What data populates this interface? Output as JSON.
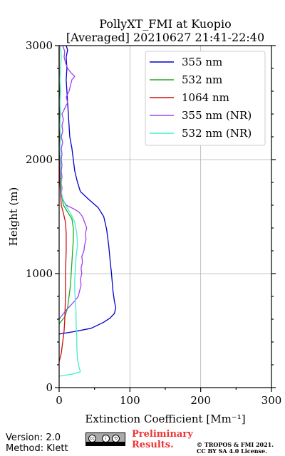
{
  "header": {
    "title_line1": "PollyXT_FMI at Kuopio",
    "title_line2": "[Averaged] 20210627 21:41-22:40"
  },
  "footer": {
    "version": "Version: 2.0",
    "method": "Method: Klett",
    "license_badge_icons": "cc-by-sa-icon",
    "preliminary_line1": "Preliminary",
    "preliminary_line2": "Results.",
    "copyright_line1": "© TROPOS & FMI 2021.",
    "copyright_line2": "CC BY SA 4.0 License."
  },
  "chart_data": {
    "type": "line",
    "xlabel": "Extinction Coefficient [Mm⁻¹]",
    "ylabel": "Height (m)",
    "xlim": [
      0,
      300
    ],
    "ylim": [
      0,
      3000
    ],
    "xticks": [
      "0",
      "100",
      "200",
      "300"
    ],
    "yticks": [
      "0",
      "1000",
      "2000",
      "3000"
    ],
    "grid": true,
    "legend_position": "top-right",
    "series": [
      {
        "name": "355 nm",
        "color": "#0000cc",
        "points": [
          [
            0,
            470
          ],
          [
            20,
            490
          ],
          [
            45,
            520
          ],
          [
            62,
            570
          ],
          [
            72,
            610
          ],
          [
            78,
            650
          ],
          [
            80,
            700
          ],
          [
            78,
            760
          ],
          [
            76,
            850
          ],
          [
            74,
            1000
          ],
          [
            72,
            1120
          ],
          [
            70,
            1250
          ],
          [
            67,
            1390
          ],
          [
            63,
            1500
          ],
          [
            55,
            1580
          ],
          [
            42,
            1650
          ],
          [
            30,
            1720
          ],
          [
            26,
            1800
          ],
          [
            22,
            1900
          ],
          [
            20,
            2000
          ],
          [
            18,
            2100
          ],
          [
            15,
            2200
          ],
          [
            14,
            2300
          ],
          [
            13,
            2400
          ],
          [
            12,
            2500
          ],
          [
            11,
            2600
          ],
          [
            10,
            2700
          ],
          [
            11,
            2800
          ],
          [
            10,
            2900
          ],
          [
            12,
            2960
          ],
          [
            10,
            3000
          ]
        ]
      },
      {
        "name": "532 nm",
        "color": "#22aa22",
        "points": [
          [
            0,
            560
          ],
          [
            8,
            620
          ],
          [
            12,
            700
          ],
          [
            14,
            800
          ],
          [
            16,
            900
          ],
          [
            17,
            1000
          ],
          [
            18,
            1100
          ],
          [
            19,
            1200
          ],
          [
            20,
            1300
          ],
          [
            20,
            1400
          ],
          [
            18,
            1480
          ],
          [
            12,
            1540
          ],
          [
            6,
            1600
          ],
          [
            3,
            1700
          ],
          [
            2,
            1800
          ],
          [
            2,
            1900
          ],
          [
            1,
            2000
          ],
          [
            1,
            2200
          ],
          [
            1,
            2400
          ],
          [
            1,
            2600
          ],
          [
            0,
            2800
          ],
          [
            0,
            3000
          ]
        ]
      },
      {
        "name": "1064 nm",
        "color": "#cc1111",
        "points": [
          [
            0,
            230
          ],
          [
            3,
            300
          ],
          [
            5,
            400
          ],
          [
            7,
            500
          ],
          [
            8,
            600
          ],
          [
            9,
            800
          ],
          [
            9,
            1000
          ],
          [
            10,
            1200
          ],
          [
            10,
            1350
          ],
          [
            9,
            1450
          ],
          [
            6,
            1530
          ],
          [
            3,
            1600
          ],
          [
            2,
            1700
          ],
          [
            1,
            1800
          ],
          [
            1,
            1900
          ],
          [
            0,
            2000
          ],
          [
            0,
            2200
          ],
          [
            0,
            2500
          ],
          [
            0,
            2800
          ],
          [
            0,
            3000
          ]
        ]
      },
      {
        "name": "355 nm (NR)",
        "color": "#a040f0",
        "points": [
          [
            0,
            600
          ],
          [
            5,
            640
          ],
          [
            10,
            680
          ],
          [
            16,
            720
          ],
          [
            22,
            760
          ],
          [
            27,
            800
          ],
          [
            29,
            850
          ],
          [
            31,
            900
          ],
          [
            30,
            950
          ],
          [
            32,
            1000
          ],
          [
            31,
            1050
          ],
          [
            33,
            1100
          ],
          [
            32,
            1150
          ],
          [
            35,
            1200
          ],
          [
            36,
            1250
          ],
          [
            38,
            1300
          ],
          [
            37,
            1350
          ],
          [
            39,
            1400
          ],
          [
            36,
            1450
          ],
          [
            33,
            1500
          ],
          [
            28,
            1540
          ],
          [
            20,
            1570
          ],
          [
            10,
            1600
          ],
          [
            5,
            1650
          ],
          [
            3,
            1700
          ],
          [
            4,
            1750
          ],
          [
            3,
            1800
          ],
          [
            4,
            1850
          ],
          [
            3,
            1900
          ],
          [
            4,
            1950
          ],
          [
            3,
            2000
          ],
          [
            4,
            2050
          ],
          [
            3,
            2100
          ],
          [
            5,
            2150
          ],
          [
            3,
            2200
          ],
          [
            5,
            2250
          ],
          [
            4,
            2300
          ],
          [
            6,
            2350
          ],
          [
            4,
            2400
          ],
          [
            8,
            2450
          ],
          [
            12,
            2500
          ],
          [
            10,
            2550
          ],
          [
            14,
            2600
          ],
          [
            16,
            2650
          ],
          [
            18,
            2700
          ],
          [
            22,
            2730
          ],
          [
            17,
            2760
          ],
          [
            12,
            2800
          ],
          [
            9,
            2850
          ],
          [
            7,
            2900
          ],
          [
            8,
            2950
          ],
          [
            5,
            3000
          ]
        ]
      },
      {
        "name": "532 nm (NR)",
        "color": "#44eecc",
        "points": [
          [
            0,
            100
          ],
          [
            10,
            110
          ],
          [
            20,
            120
          ],
          [
            30,
            140
          ],
          [
            28,
            180
          ],
          [
            26,
            250
          ],
          [
            25,
            350
          ],
          [
            25,
            450
          ],
          [
            24,
            550
          ],
          [
            24,
            650
          ],
          [
            23,
            750
          ],
          [
            22,
            850
          ],
          [
            22,
            950
          ],
          [
            23,
            1050
          ],
          [
            24,
            1150
          ],
          [
            26,
            1250
          ],
          [
            25,
            1350
          ],
          [
            22,
            1450
          ],
          [
            16,
            1530
          ],
          [
            9,
            1600
          ],
          [
            5,
            1660
          ],
          [
            3,
            1720
          ],
          [
            3,
            1800
          ],
          [
            2,
            1900
          ],
          [
            2,
            2000
          ],
          [
            1,
            2100
          ],
          [
            2,
            2200
          ],
          [
            1,
            2300
          ],
          [
            2,
            2400
          ],
          [
            1,
            2500
          ],
          [
            2,
            2600
          ],
          [
            1,
            2700
          ],
          [
            2,
            2800
          ],
          [
            3,
            2900
          ],
          [
            2,
            3000
          ]
        ]
      }
    ]
  }
}
